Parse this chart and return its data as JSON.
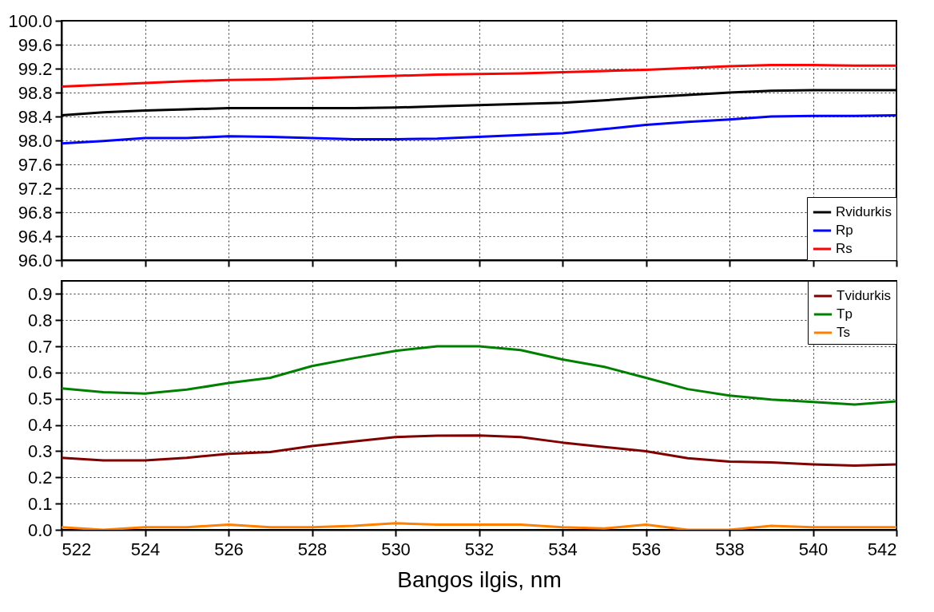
{
  "chart_data": [
    {
      "type": "line",
      "x": [
        522,
        523,
        524,
        525,
        526,
        527,
        528,
        529,
        530,
        531,
        532,
        533,
        534,
        535,
        536,
        537,
        538,
        539,
        540,
        541,
        542
      ],
      "xlim": [
        522,
        542
      ],
      "xticks": [
        522,
        524,
        526,
        528,
        530,
        532,
        534,
        536,
        538,
        540,
        542
      ],
      "ylim": [
        96.0,
        100.0
      ],
      "yticks": [
        {
          "value": 96,
          "label": "96.0"
        },
        96.4,
        96.8,
        97.2,
        97.6,
        {
          "value": 98,
          "label": "98.0"
        },
        98.4,
        98.8,
        99.2,
        99.6,
        {
          "value": 100,
          "label": "100.0"
        }
      ],
      "grid": true,
      "legend": "bottom right",
      "tick_labels": "y",
      "series": [
        {
          "name": "Rvidurkis",
          "color": "#000000",
          "values": [
            98.42,
            98.47,
            98.5,
            98.52,
            98.54,
            98.54,
            98.54,
            98.54,
            98.55,
            98.57,
            98.59,
            98.61,
            98.63,
            98.67,
            98.72,
            98.76,
            98.8,
            98.83,
            98.84,
            98.84,
            98.84
          ]
        },
        {
          "name": "Rp",
          "color": "#0000ff",
          "values": [
            97.95,
            97.99,
            98.04,
            98.04,
            98.07,
            98.06,
            98.04,
            98.02,
            98.02,
            98.03,
            98.06,
            98.09,
            98.12,
            98.19,
            98.26,
            98.31,
            98.35,
            98.4,
            98.41,
            98.41,
            98.42
          ]
        },
        {
          "name": "Rs",
          "color": "#ff0000",
          "values": [
            98.9,
            98.93,
            98.96,
            98.99,
            99.01,
            99.02,
            99.04,
            99.06,
            99.08,
            99.1,
            99.11,
            99.12,
            99.14,
            99.16,
            99.18,
            99.21,
            99.24,
            99.26,
            99.26,
            99.25,
            99.25
          ]
        }
      ]
    },
    {
      "type": "line",
      "x": [
        522,
        523,
        524,
        525,
        526,
        527,
        528,
        529,
        530,
        531,
        532,
        533,
        534,
        535,
        536,
        537,
        538,
        539,
        540,
        541,
        542
      ],
      "xlim": [
        522,
        542
      ],
      "xticks": [
        522,
        524,
        526,
        528,
        530,
        532,
        534,
        536,
        538,
        540,
        542
      ],
      "ylim": [
        0.0,
        0.95
      ],
      "yticks": [
        {
          "value": 0,
          "label": "0.0"
        },
        0.1,
        0.2,
        0.3,
        0.4,
        0.5,
        0.6,
        0.7,
        0.8,
        0.9
      ],
      "grid": true,
      "legend": "top right",
      "xlabel": "Bangos ilgis, nm",
      "series": [
        {
          "name": "Tvidurkis",
          "color": "#800000",
          "values": [
            0.275,
            0.265,
            0.265,
            0.275,
            0.29,
            0.297,
            0.32,
            0.337,
            0.354,
            0.359,
            0.36,
            0.354,
            0.333,
            0.316,
            0.3,
            0.273,
            0.26,
            0.257,
            0.25,
            0.245,
            0.25
          ]
        },
        {
          "name": "Tp",
          "color": "#008000",
          "values": [
            0.54,
            0.525,
            0.52,
            0.535,
            0.56,
            0.58,
            0.625,
            0.655,
            0.683,
            0.7,
            0.7,
            0.686,
            0.65,
            0.622,
            0.58,
            0.537,
            0.512,
            0.497,
            0.488,
            0.478,
            0.49
          ]
        },
        {
          "name": "Ts",
          "color": "#ff8000",
          "values": [
            0.01,
            0.0,
            0.01,
            0.01,
            0.02,
            0.01,
            0.01,
            0.015,
            0.025,
            0.02,
            0.02,
            0.02,
            0.01,
            0.005,
            0.02,
            0.0,
            0.0,
            0.015,
            0.01,
            0.01,
            0.01
          ]
        }
      ]
    }
  ]
}
